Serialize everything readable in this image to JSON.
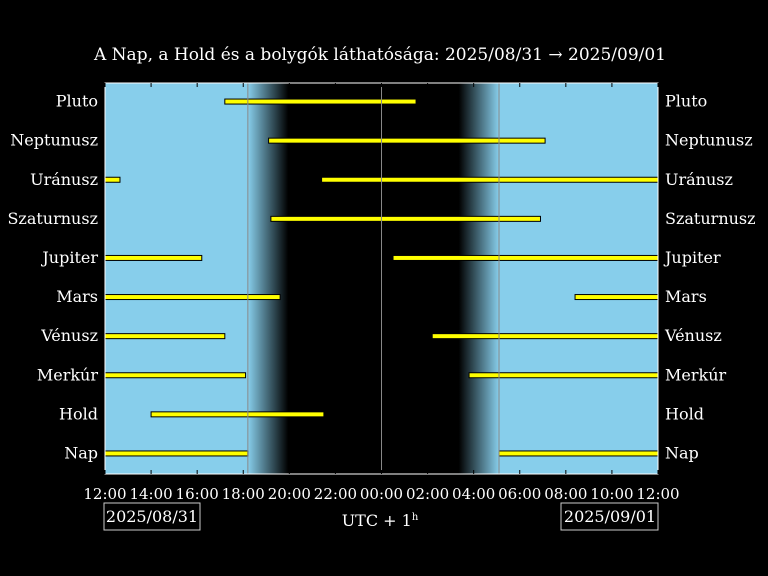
{
  "chart_data": {
    "type": "timeline",
    "title": "A Nap, a Hold és a bolygók láthatósága: 2025/08/31 → 2025/09/01",
    "xlabel_base": "UTC + 1",
    "xlabel_sup": "h",
    "date_left": "2025/08/31",
    "date_right": "2025/09/01",
    "x_range_hours": [
      0,
      24
    ],
    "x_tick_labels": [
      "12:00",
      "14:00",
      "16:00",
      "18:00",
      "20:00",
      "22:00",
      "00:00",
      "02:00",
      "04:00",
      "06:00",
      "08:00",
      "10:00",
      "12:00"
    ],
    "sunset_hours": 6.2,
    "sunrise_hours": 17.1,
    "twilight_fade_hours": 1.75,
    "midnight_hours": 12,
    "colors": {
      "day": "#87ceeb",
      "night": "#000000",
      "bar": "#ffff00",
      "bar_edge": "#000000",
      "text": "#ffffff"
    },
    "bodies": [
      {
        "name": "Pluto",
        "intervals": [
          [
            5.2,
            13.5
          ]
        ]
      },
      {
        "name": "Neptunusz",
        "intervals": [
          [
            7.1,
            19.1
          ]
        ]
      },
      {
        "name": "Uránusz",
        "intervals": [
          [
            0.0,
            0.65
          ],
          [
            9.4,
            24.0
          ]
        ]
      },
      {
        "name": "Szaturnusz",
        "intervals": [
          [
            7.2,
            18.9
          ]
        ]
      },
      {
        "name": "Jupiter",
        "intervals": [
          [
            0.0,
            4.2
          ],
          [
            12.5,
            24.0
          ]
        ]
      },
      {
        "name": "Mars",
        "intervals": [
          [
            0.0,
            7.6
          ],
          [
            20.4,
            24.0
          ]
        ]
      },
      {
        "name": "Vénusz",
        "intervals": [
          [
            0.0,
            5.2
          ],
          [
            14.2,
            24.0
          ]
        ]
      },
      {
        "name": "Merkúr",
        "intervals": [
          [
            0.0,
            6.1
          ],
          [
            15.8,
            24.0
          ]
        ]
      },
      {
        "name": "Hold",
        "intervals": [
          [
            2.0,
            9.5
          ]
        ]
      },
      {
        "name": "Nap",
        "intervals": [
          [
            0.0,
            6.2
          ],
          [
            17.1,
            24.0
          ]
        ]
      }
    ]
  }
}
